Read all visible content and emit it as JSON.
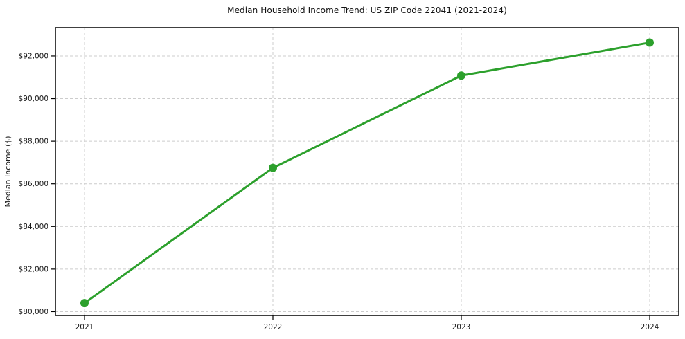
{
  "chart_data": {
    "type": "line",
    "title": "Median Household Income Trend: US ZIP Code 22041 (2021-2024)",
    "xlabel": "",
    "ylabel": "Median Income ($)",
    "categories": [
      "2021",
      "2022",
      "2023",
      "2024"
    ],
    "series": [
      {
        "name": "Median Household Income",
        "values": [
          80400,
          86750,
          91080,
          92630
        ]
      }
    ],
    "ylim": [
      79820,
      93330
    ],
    "yticks": [
      80000,
      82000,
      84000,
      86000,
      88000,
      90000,
      92000
    ],
    "ytick_labels": [
      "$80,000",
      "$82,000",
      "$84,000",
      "$86,000",
      "$88,000",
      "$90,000",
      "$92,000"
    ],
    "grid": true,
    "grid_style": "dashed",
    "legend_position": "none",
    "colors": {
      "line": "#2ca02c",
      "marker": "#2ca02c",
      "grid": "#cccccc",
      "spine": "#000000",
      "text": "#1a1a1a",
      "background": "#ffffff"
    }
  }
}
